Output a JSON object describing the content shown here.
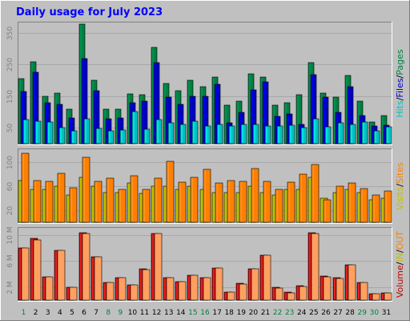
{
  "title": "Daily usage for July 2023",
  "colors": {
    "background": "#c0c0c0",
    "hits": "#00c0c0",
    "hits_light": "#00ffff",
    "files": "#0000c0",
    "files_light": "#0000ff",
    "pages": "#008040",
    "pages_light": "#00a060",
    "sites": "#ff8000",
    "sites_light": "#ffa040",
    "visits": "#c0c000",
    "kbytes": "#c00000",
    "kbytes_light": "#ff4040",
    "in_out": "#ffa060",
    "title": "#0000ff",
    "weekend": "#008040",
    "weekday": "#000000"
  },
  "chart_data": [
    {
      "type": "bar",
      "name": "hits-files-pages",
      "categories": [
        "1",
        "2",
        "3",
        "4",
        "5",
        "6",
        "7",
        "8",
        "9",
        "10",
        "11",
        "12",
        "13",
        "14",
        "15",
        "16",
        "17",
        "18",
        "19",
        "20",
        "21",
        "22",
        "23",
        "24",
        "25",
        "26",
        "27",
        "28",
        "29",
        "30",
        "31"
      ],
      "ylim": [
        0,
        380
      ],
      "y_ticks": [
        "50",
        "150",
        "250",
        "350"
      ],
      "y_tick_values": [
        50,
        150,
        250,
        350
      ],
      "legend_parts": [
        {
          "text": "Hits",
          "color": "hits"
        },
        {
          "text": "/",
          "color": "weekday"
        },
        {
          "text": "Files",
          "color": "files"
        },
        {
          "text": "/",
          "color": "weekday"
        },
        {
          "text": "Pages",
          "color": "pages"
        }
      ],
      "series": [
        {
          "name": "Pages",
          "color": "pages",
          "values": [
            205,
            258,
            150,
            160,
            108,
            378,
            200,
            108,
            108,
            158,
            155,
            305,
            190,
            168,
            200,
            180,
            210,
            122,
            135,
            220,
            210,
            122,
            128,
            155,
            255,
            160,
            148,
            215,
            135,
            68,
            88
          ]
        },
        {
          "name": "Files",
          "color": "files",
          "values": [
            165,
            225,
            128,
            125,
            80,
            268,
            168,
            78,
            82,
            130,
            135,
            255,
            148,
            125,
            150,
            150,
            188,
            65,
            100,
            170,
            195,
            85,
            95,
            60,
            218,
            148,
            100,
            180,
            88,
            55,
            58
          ]
        },
        {
          "name": "Hits",
          "color": "hits",
          "values": [
            75,
            72,
            68,
            50,
            40,
            78,
            48,
            40,
            42,
            102,
            45,
            75,
            65,
            60,
            72,
            55,
            62,
            55,
            60,
            62,
            55,
            55,
            58,
            50,
            78,
            52,
            65,
            62,
            68,
            40,
            52
          ]
        }
      ]
    },
    {
      "type": "bar",
      "name": "visits-sites",
      "categories": [
        "1",
        "2",
        "3",
        "4",
        "5",
        "6",
        "7",
        "8",
        "9",
        "10",
        "11",
        "12",
        "13",
        "14",
        "15",
        "16",
        "17",
        "18",
        "19",
        "20",
        "21",
        "22",
        "23",
        "24",
        "25",
        "26",
        "27",
        "28",
        "29",
        "30",
        "31"
      ],
      "ylim": [
        0,
        120
      ],
      "y_ticks": [
        "20",
        "60",
        "100"
      ],
      "y_tick_values": [
        20,
        60,
        100
      ],
      "legend_parts": [
        {
          "text": "Visits",
          "color": "visits"
        },
        {
          "text": "/",
          "color": "weekday"
        },
        {
          "text": "Sites",
          "color": "sites"
        }
      ],
      "series": [
        {
          "name": "Visits",
          "color": "visits",
          "values": [
            70,
            55,
            55,
            60,
            45,
            75,
            60,
            50,
            50,
            65,
            48,
            60,
            60,
            55,
            60,
            55,
            50,
            50,
            50,
            60,
            50,
            45,
            55,
            55,
            75,
            40,
            50,
            55,
            50,
            38,
            40
          ]
        },
        {
          "name": "Sites",
          "color": "sites",
          "values": [
            115,
            70,
            68,
            82,
            58,
            108,
            68,
            73,
            55,
            78,
            55,
            73,
            102,
            67,
            75,
            88,
            65,
            70,
            68,
            90,
            68,
            55,
            67,
            80,
            96,
            38,
            60,
            65,
            56,
            45,
            52
          ]
        }
      ]
    },
    {
      "type": "bar",
      "name": "kbytes-in-out",
      "categories": [
        "1",
        "2",
        "3",
        "4",
        "5",
        "6",
        "7",
        "8",
        "9",
        "10",
        "11",
        "12",
        "13",
        "14",
        "15",
        "16",
        "17",
        "18",
        "19",
        "20",
        "21",
        "22",
        "23",
        "24",
        "25",
        "26",
        "27",
        "28",
        "29",
        "30",
        "31"
      ],
      "ylim": [
        0,
        11000000
      ],
      "y_ticks": [
        "2 M",
        "6 M",
        "10 M"
      ],
      "y_tick_values": [
        2000000,
        6000000,
        10000000
      ],
      "legend_parts": [
        {
          "text": "Volume",
          "color": "kbytes"
        },
        {
          "text": "/",
          "color": "weekday"
        },
        {
          "text": "IN",
          "color": "visits"
        },
        {
          "text": "/",
          "color": "weekday"
        },
        {
          "text": "OUT",
          "color": "sites"
        }
      ],
      "series": [
        {
          "name": "Volume",
          "color": "kbytes",
          "values": [
            8000000,
            9500000,
            3600000,
            7700000,
            2000000,
            10400000,
            6700000,
            2700000,
            3500000,
            2400000,
            4800000,
            10300000,
            3400000,
            2900000,
            3800000,
            3500000,
            4900000,
            1200000,
            2600000,
            4800000,
            6900000,
            2000000,
            1200000,
            2200000,
            10400000,
            3700000,
            3400000,
            5500000,
            2700000,
            1000000,
            1100000
          ]
        },
        {
          "name": "OUT",
          "color": "in_out",
          "values": [
            8000000,
            9300000,
            3600000,
            7700000,
            2000000,
            10300000,
            6700000,
            2700000,
            3400000,
            2300000,
            4700000,
            10200000,
            3400000,
            2900000,
            3800000,
            3400000,
            4900000,
            1200000,
            2500000,
            4800000,
            6900000,
            1900000,
            1100000,
            2100000,
            10300000,
            3600000,
            3300000,
            5400000,
            2700000,
            1000000,
            1100000
          ]
        }
      ]
    }
  ],
  "weekend_days": [
    1,
    8,
    9,
    15,
    16,
    22,
    23,
    29,
    30
  ]
}
